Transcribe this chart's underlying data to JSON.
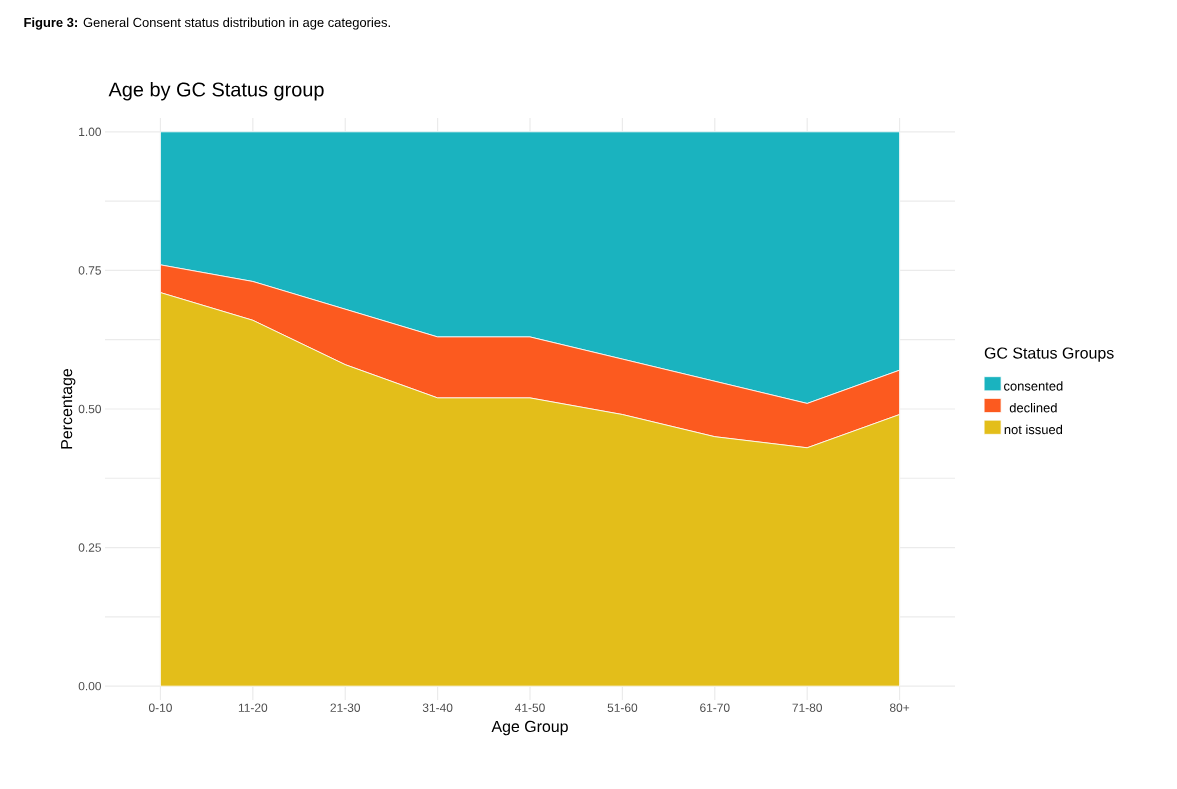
{
  "chart_data": {
    "type": "area",
    "title": "Age by GC Status group",
    "annotations": [
      "**Figure 3:** General Consent status distribution in age categories."
    ],
    "xlabel": "Age Group",
    "ylabel": "Percentage",
    "legend_title": "GC Status Groups",
    "categories": [
      "0-10",
      "11-20",
      "21-30",
      "31-40",
      "41-50",
      "51-60",
      "61-70",
      "71-80",
      "80+"
    ],
    "stacked": true,
    "series": [
      {
        "name": "not issued",
        "color": "#e3be1a",
        "values": [
          0.71,
          0.66,
          0.58,
          0.52,
          0.52,
          0.49,
          0.45,
          0.43,
          0.49
        ]
      },
      {
        "name": "declined",
        "color": "#fc5a1f",
        "values": [
          0.05,
          0.07,
          0.1,
          0.11,
          0.11,
          0.1,
          0.1,
          0.08,
          0.08
        ]
      },
      {
        "name": "consented",
        "color": "#1ab3bf",
        "values": [
          0.24,
          0.27,
          0.32,
          0.37,
          0.37,
          0.41,
          0.45,
          0.49,
          0.43
        ]
      }
    ],
    "ylim": [
      0,
      1
    ],
    "yticks": [
      {
        "value": 0,
        "label": "0.00"
      },
      {
        "value": 0.125,
        "label": null
      },
      {
        "value": 0.25,
        "label": "0.25"
      },
      {
        "value": 0.375,
        "label": null
      },
      {
        "value": 0.5,
        "label": "0.50"
      },
      {
        "value": 0.625,
        "label": null
      },
      {
        "value": 0.75,
        "label": "0.75"
      },
      {
        "value": 0.875,
        "label": null
      },
      {
        "value": 1,
        "label": "1.00"
      }
    ],
    "grid": true,
    "legend": "right"
  }
}
